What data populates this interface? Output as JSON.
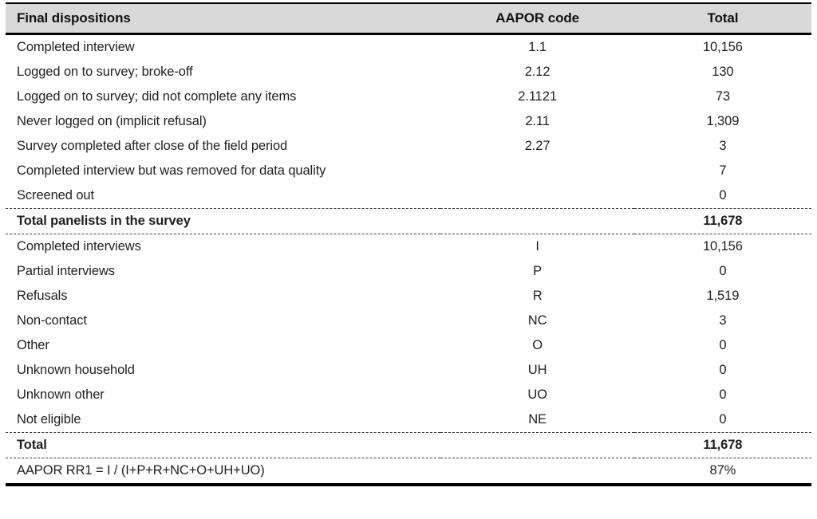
{
  "table": {
    "columns": {
      "label": "Final dispositions",
      "code": "AAPOR code",
      "total": "Total"
    },
    "rows": [
      {
        "label": "Completed interview",
        "code": "1.1",
        "total": "10,156"
      },
      {
        "label": "Logged on to survey; broke-off",
        "code": "2.12",
        "total": "130"
      },
      {
        "label": "Logged on to survey; did not complete any items",
        "code": "2.1121",
        "total": "73"
      },
      {
        "label": "Never logged on (implicit refusal)",
        "code": "2.11",
        "total": "1,309"
      },
      {
        "label": "Survey completed after close of the field period",
        "code": "2.27",
        "total": "3"
      },
      {
        "label": "Completed interview but was removed for data quality",
        "code": "",
        "total": "7"
      },
      {
        "label": "Screened out",
        "code": "",
        "total": "0"
      },
      {
        "label": "Total panelists in the survey",
        "code": "",
        "total": "11,678"
      },
      {
        "label": "Completed interviews",
        "code": "I",
        "total": "10,156"
      },
      {
        "label": "Partial interviews",
        "code": "P",
        "total": "0"
      },
      {
        "label": "Refusals",
        "code": "R",
        "total": "1,519"
      },
      {
        "label": "Non-contact",
        "code": "NC",
        "total": "3"
      },
      {
        "label": "Other",
        "code": "O",
        "total": "0"
      },
      {
        "label": "Unknown household",
        "code": "UH",
        "total": "0"
      },
      {
        "label": "Unknown other",
        "code": "UO",
        "total": "0"
      },
      {
        "label": "Not eligible",
        "code": "NE",
        "total": "0"
      },
      {
        "label": "Total",
        "code": "",
        "total": "11,678"
      },
      {
        "label": "AAPOR RR1 = I / (I+P+R+NC+O+UH+UO)",
        "code": "",
        "total": "87%"
      }
    ],
    "colors": {
      "header_background": "#d9d9d9",
      "text": "#1f1f1f",
      "rule": "#000000"
    }
  }
}
